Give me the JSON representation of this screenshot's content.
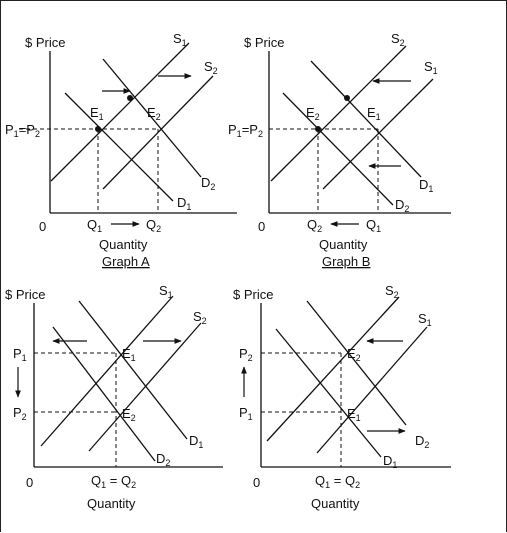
{
  "graphs": [
    {
      "id": "graph-a",
      "y_axis_label": "$ Price",
      "origin": "0",
      "price_label": "P1=P2",
      "quantity_axis_label": "Quantity",
      "caption": "Graph A",
      "lines": [
        "S1",
        "S2",
        "D1",
        "D2"
      ],
      "points": [
        "E1",
        "E2"
      ],
      "q_labels": [
        "Q1",
        "Q2"
      ],
      "q_arrow": "Q1 → Q2"
    },
    {
      "id": "graph-b",
      "y_axis_label": "$ Price",
      "origin": "0",
      "price_label": "P1=P2",
      "quantity_axis_label": "Quantity",
      "caption": "Graph B",
      "lines": [
        "S2",
        "S1",
        "D1",
        "D2"
      ],
      "points": [
        "E2",
        "E1"
      ],
      "q_labels": [
        "Q2",
        "Q1"
      ],
      "q_arrow": "Q2 ← Q1"
    },
    {
      "id": "graph-c",
      "y_axis_label": "$ Price",
      "origin": "0",
      "price_labels": [
        "P1",
        "P2"
      ],
      "quantity_axis_label": "Quantity",
      "q_label": "Q1 = Q2",
      "lines": [
        "S1",
        "S2",
        "D1",
        "D2"
      ],
      "points": [
        "E1",
        "E2"
      ]
    },
    {
      "id": "graph-d",
      "y_axis_label": "$ Price",
      "origin": "0",
      "price_labels": [
        "P2",
        "P1"
      ],
      "quantity_axis_label": "Quantity",
      "q_label": "Q1 = Q2",
      "lines": [
        "S2",
        "S1",
        "D2",
        "D1"
      ],
      "points": [
        "E2",
        "E1"
      ]
    }
  ]
}
